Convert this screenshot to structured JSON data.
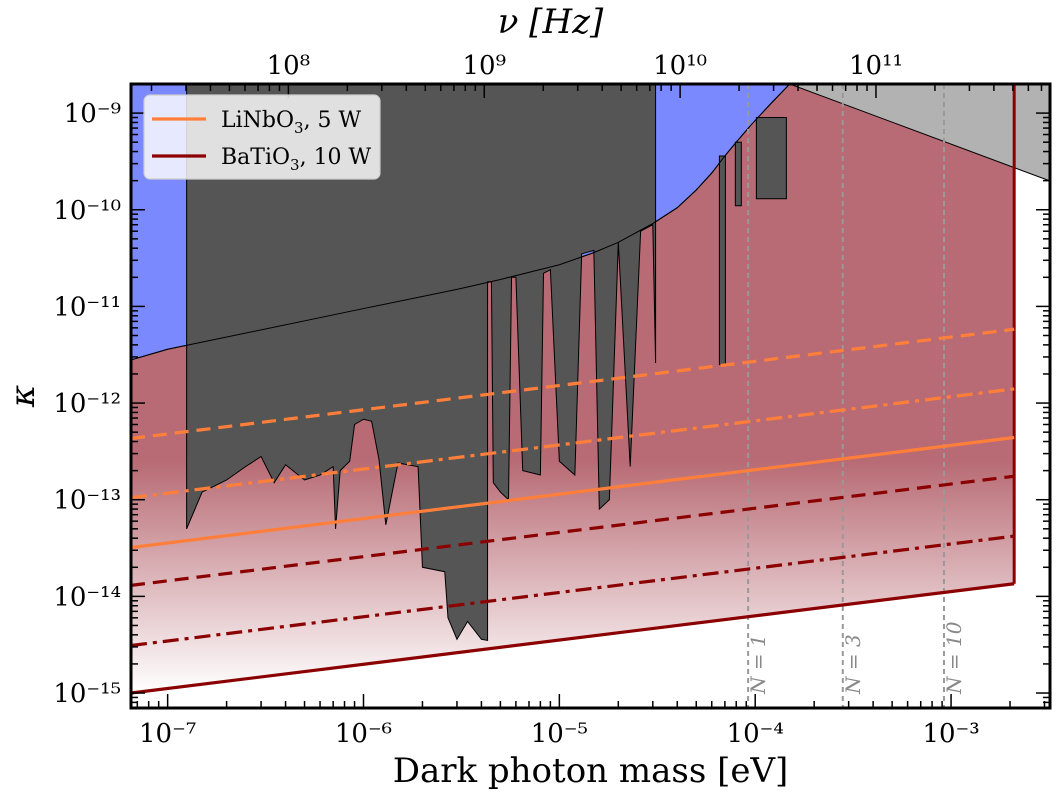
{
  "chart_data": {
    "type": "line",
    "xlabel": "Dark photon mass [eV]",
    "ylabel": "κ",
    "top_xlabel": "ν [Hz]",
    "xscale": "log",
    "yscale": "log",
    "xlim": [
      6.5e-08,
      0.0032
    ],
    "ylim": [
      7e-16,
      2e-09
    ],
    "x_ticks": [
      {
        "value": 1e-07,
        "label": "10⁻⁷"
      },
      {
        "value": 1e-06,
        "label": "10⁻⁶"
      },
      {
        "value": 1e-05,
        "label": "10⁻⁵"
      },
      {
        "value": 0.0001,
        "label": "10⁻⁴"
      },
      {
        "value": 0.001,
        "label": "10⁻³"
      }
    ],
    "y_ticks": [
      {
        "value": 1e-09,
        "label": "10⁻⁹"
      },
      {
        "value": 1e-10,
        "label": "10⁻¹⁰"
      },
      {
        "value": 1e-11,
        "label": "10⁻¹¹"
      },
      {
        "value": 1e-12,
        "label": "10⁻¹²"
      },
      {
        "value": 1e-13,
        "label": "10⁻¹³"
      },
      {
        "value": 1e-14,
        "label": "10⁻¹⁴"
      },
      {
        "value": 1e-15,
        "label": "10⁻¹⁵"
      }
    ],
    "top_ticks": [
      {
        "mass": 4.136e-07,
        "label": "10⁸"
      },
      {
        "mass": 4.136e-06,
        "label": "10⁹"
      },
      {
        "mass": 4.136e-05,
        "label": "10¹⁰"
      },
      {
        "mass": 0.0004136,
        "label": "10¹¹"
      }
    ],
    "legend": {
      "placement": "top-left",
      "entries": [
        {
          "label": "LiNbO",
          "sub": "3",
          "suffix": ", 5 W",
          "color": "#ff7f3a"
        },
        {
          "label": "BaTiO",
          "sub": "3",
          "suffix": ", 10 W",
          "color": "#8b0000"
        }
      ]
    },
    "colors": {
      "blue_region": "#7b89ff",
      "gray_region": "#b2b2b2",
      "dark_region": "#555555",
      "red_region": "#b86b74",
      "orange": "#ff7f3a",
      "darkred": "#8b0000",
      "vline": "#999999"
    },
    "blue_boundary": [
      [
        6.5e-08,
        2.8e-12
      ],
      [
        1e-07,
        3.6e-12
      ],
      [
        1e-06,
        9.5e-12
      ],
      [
        3e-06,
        1.5e-11
      ],
      [
        5e-06,
        1.9e-11
      ],
      [
        1e-05,
        2.7e-11
      ],
      [
        1.5e-05,
        3.6e-11
      ],
      [
        2e-05,
        4.6e-11
      ],
      [
        3e-05,
        7.2e-11
      ],
      [
        4e-05,
        1.05e-10
      ],
      [
        5e-05,
        1.6e-10
      ],
      [
        6e-05,
        2.4e-10
      ],
      [
        7e-05,
        3.6e-10
      ],
      [
        8e-05,
        5e-10
      ],
      [
        9.5e-05,
        7.5e-10
      ],
      [
        0.00012,
        1.25e-09
      ],
      [
        0.00015,
        2e-09
      ]
    ],
    "gray_region": {
      "upper_left": [
        0.00015,
        2e-09
      ],
      "lower_right": [
        0.0032,
        1.9e-10
      ]
    },
    "red_region": {
      "bottom": [
        [
          6.5e-08,
          1e-15
        ],
        [
          0.0021,
          1.35e-14
        ]
      ],
      "right_edge_mass": 0.0021
    },
    "dark_region": [
      [
        1.25e-07,
        3.8e-12
      ],
      [
        1.25e-07,
        5e-14
      ],
      [
        1.5e-07,
        1.2e-13
      ],
      [
        2e-07,
        1.6e-13
      ],
      [
        2.5e-07,
        2.2e-13
      ],
      [
        3e-07,
        2.8e-13
      ],
      [
        3.5e-07,
        1.5e-13
      ],
      [
        4e-07,
        2.3e-13
      ],
      [
        5e-07,
        1.6e-13
      ],
      [
        6e-07,
        1.8e-13
      ],
      [
        7e-07,
        2.2e-13
      ],
      [
        7.2e-07,
        5e-14
      ],
      [
        7.6e-07,
        2e-13
      ],
      [
        8.5e-07,
        2.5e-13
      ],
      [
        9e-07,
        6e-13
      ],
      [
        1e-06,
        6.8e-13
      ],
      [
        1.1e-06,
        6.5e-13
      ],
      [
        1.2e-06,
        2.6e-13
      ],
      [
        1.3e-06,
        5.5e-14
      ],
      [
        1.5e-06,
        2.4e-13
      ],
      [
        1.9e-06,
        2.2e-13
      ],
      [
        2e-06,
        2e-14
      ],
      [
        2.6e-06,
        1.8e-14
      ],
      [
        2.7e-06,
        6e-15
      ],
      [
        3e-06,
        3.6e-15
      ],
      [
        3.4e-06,
        5.5e-15
      ],
      [
        4e-06,
        3.6e-15
      ],
      [
        4.3e-06,
        3.5e-15
      ],
      [
        4.3e-06,
        1.8e-11
      ],
      [
        4.5e-06,
        1.8e-11
      ],
      [
        4.6e-06,
        1.5e-13
      ],
      [
        5e-06,
        1.2e-13
      ],
      [
        5.5e-06,
        1e-13
      ],
      [
        5.7e-06,
        2e-11
      ],
      [
        6e-06,
        2e-11
      ],
      [
        6.5e-06,
        2e-13
      ],
      [
        8e-06,
        1.8e-13
      ],
      [
        8.3e-06,
        2.2e-11
      ],
      [
        9e-06,
        2.4e-11
      ],
      [
        1e-05,
        2.5e-13
      ],
      [
        1.2e-05,
        1.8e-13
      ],
      [
        1.3e-05,
        3.5e-11
      ],
      [
        1.5e-05,
        3.8e-11
      ],
      [
        1.6e-05,
        8e-14
      ],
      [
        1.8e-05,
        1e-13
      ],
      [
        2e-05,
        4.6e-11
      ],
      [
        2.3e-05,
        2.2e-13
      ],
      [
        2.6e-05,
        6e-11
      ],
      [
        3e-05,
        7e-11
      ],
      [
        3.1e-05,
        2.6e-12
      ],
      [
        3.1e-05,
        7.2e-11
      ]
    ],
    "spikes": [
      {
        "m": 6.8e-05,
        "top": 3.6e-10,
        "bottom": 2.5e-12
      },
      {
        "m": 8.2e-05,
        "top": 5e-10,
        "bottom": 1.1e-10
      },
      {
        "m": 0.000105,
        "top": 9e-10,
        "bottom": 1.3e-10
      }
    ],
    "lines": [
      {
        "name": "LiNbO3 5W dashed",
        "color": "orange",
        "dash": "14,8",
        "points": [
          [
            6.5e-08,
            4.3e-13
          ],
          [
            0.0021,
            5.8e-12
          ]
        ]
      },
      {
        "name": "LiNbO3 5W dashdot",
        "color": "orange",
        "dash": "16,6,4,6",
        "points": [
          [
            6.5e-08,
            1.05e-13
          ],
          [
            0.0021,
            1.4e-12
          ]
        ]
      },
      {
        "name": "LiNbO3 5W solid",
        "color": "orange",
        "dash": "",
        "points": [
          [
            6.5e-08,
            3.2e-14
          ],
          [
            0.0021,
            4.4e-13
          ]
        ]
      },
      {
        "name": "BaTiO3 10W dashed",
        "color": "darkred",
        "dash": "14,8",
        "points": [
          [
            6.5e-08,
            1.3e-14
          ],
          [
            0.0021,
            1.75e-13
          ]
        ]
      },
      {
        "name": "BaTiO3 10W dashdot",
        "color": "darkred",
        "dash": "16,6,4,6",
        "points": [
          [
            6.5e-08,
            3.1e-15
          ],
          [
            0.0021,
            4.2e-14
          ]
        ]
      },
      {
        "name": "BaTiO3 10W solid",
        "color": "darkred",
        "dash": "",
        "points": [
          [
            6.5e-08,
            1e-15
          ],
          [
            0.0021,
            1.35e-14
          ]
        ]
      }
    ],
    "vertical_lines": [
      {
        "mass": 9.2e-05,
        "label": "N = 1"
      },
      {
        "mass": 0.00028,
        "label": "N = 3"
      },
      {
        "mass": 0.00092,
        "label": "N = 10"
      }
    ]
  }
}
